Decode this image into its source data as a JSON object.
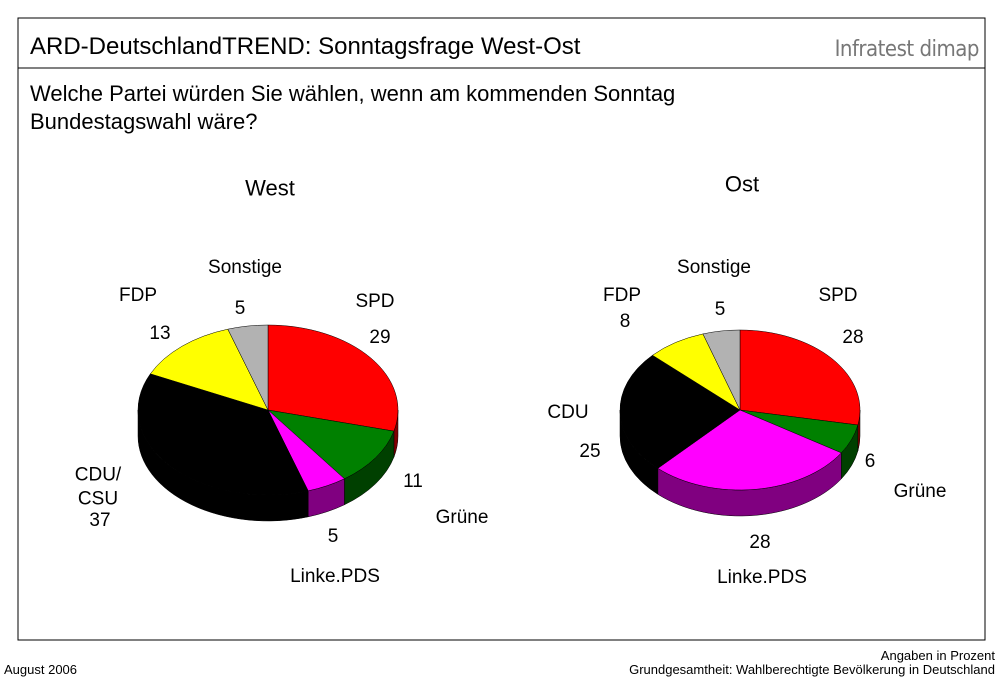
{
  "header": {
    "title": "ARD-DeutschlandTREND: Sonntagsfrage West-Ost",
    "brand": "Infratest dimap",
    "question": "Welche Partei würden Sie wählen, wenn am kommenden Sonntag\nBundestagswahl wäre?"
  },
  "chart_data": [
    {
      "type": "pie",
      "title": "West",
      "categories": [
        "SPD",
        "Grüne",
        "Linke.PDS",
        "CDU/\nCSU",
        "FDP",
        "Sonstige"
      ],
      "values": [
        29,
        11,
        5,
        37,
        13,
        5
      ],
      "colors": [
        "#ff0000",
        "#008000",
        "#ff00ff",
        "#000000",
        "#ffff00",
        "#b2b2b2"
      ]
    },
    {
      "type": "pie",
      "title": "Ost",
      "categories": [
        "SPD",
        "Grüne",
        "Linke.PDS",
        "CDU",
        "FDP",
        "Sonstige"
      ],
      "values": [
        28,
        6,
        28,
        25,
        8,
        5
      ],
      "colors": [
        "#ff0000",
        "#008000",
        "#ff00ff",
        "#000000",
        "#ffff00",
        "#b2b2b2"
      ]
    }
  ],
  "footer": {
    "date": "August 2006",
    "note": "Angaben in Prozent",
    "base": "Grundgesamtheit: Wahlberechtigte Bevölkerung in Deutschland"
  }
}
